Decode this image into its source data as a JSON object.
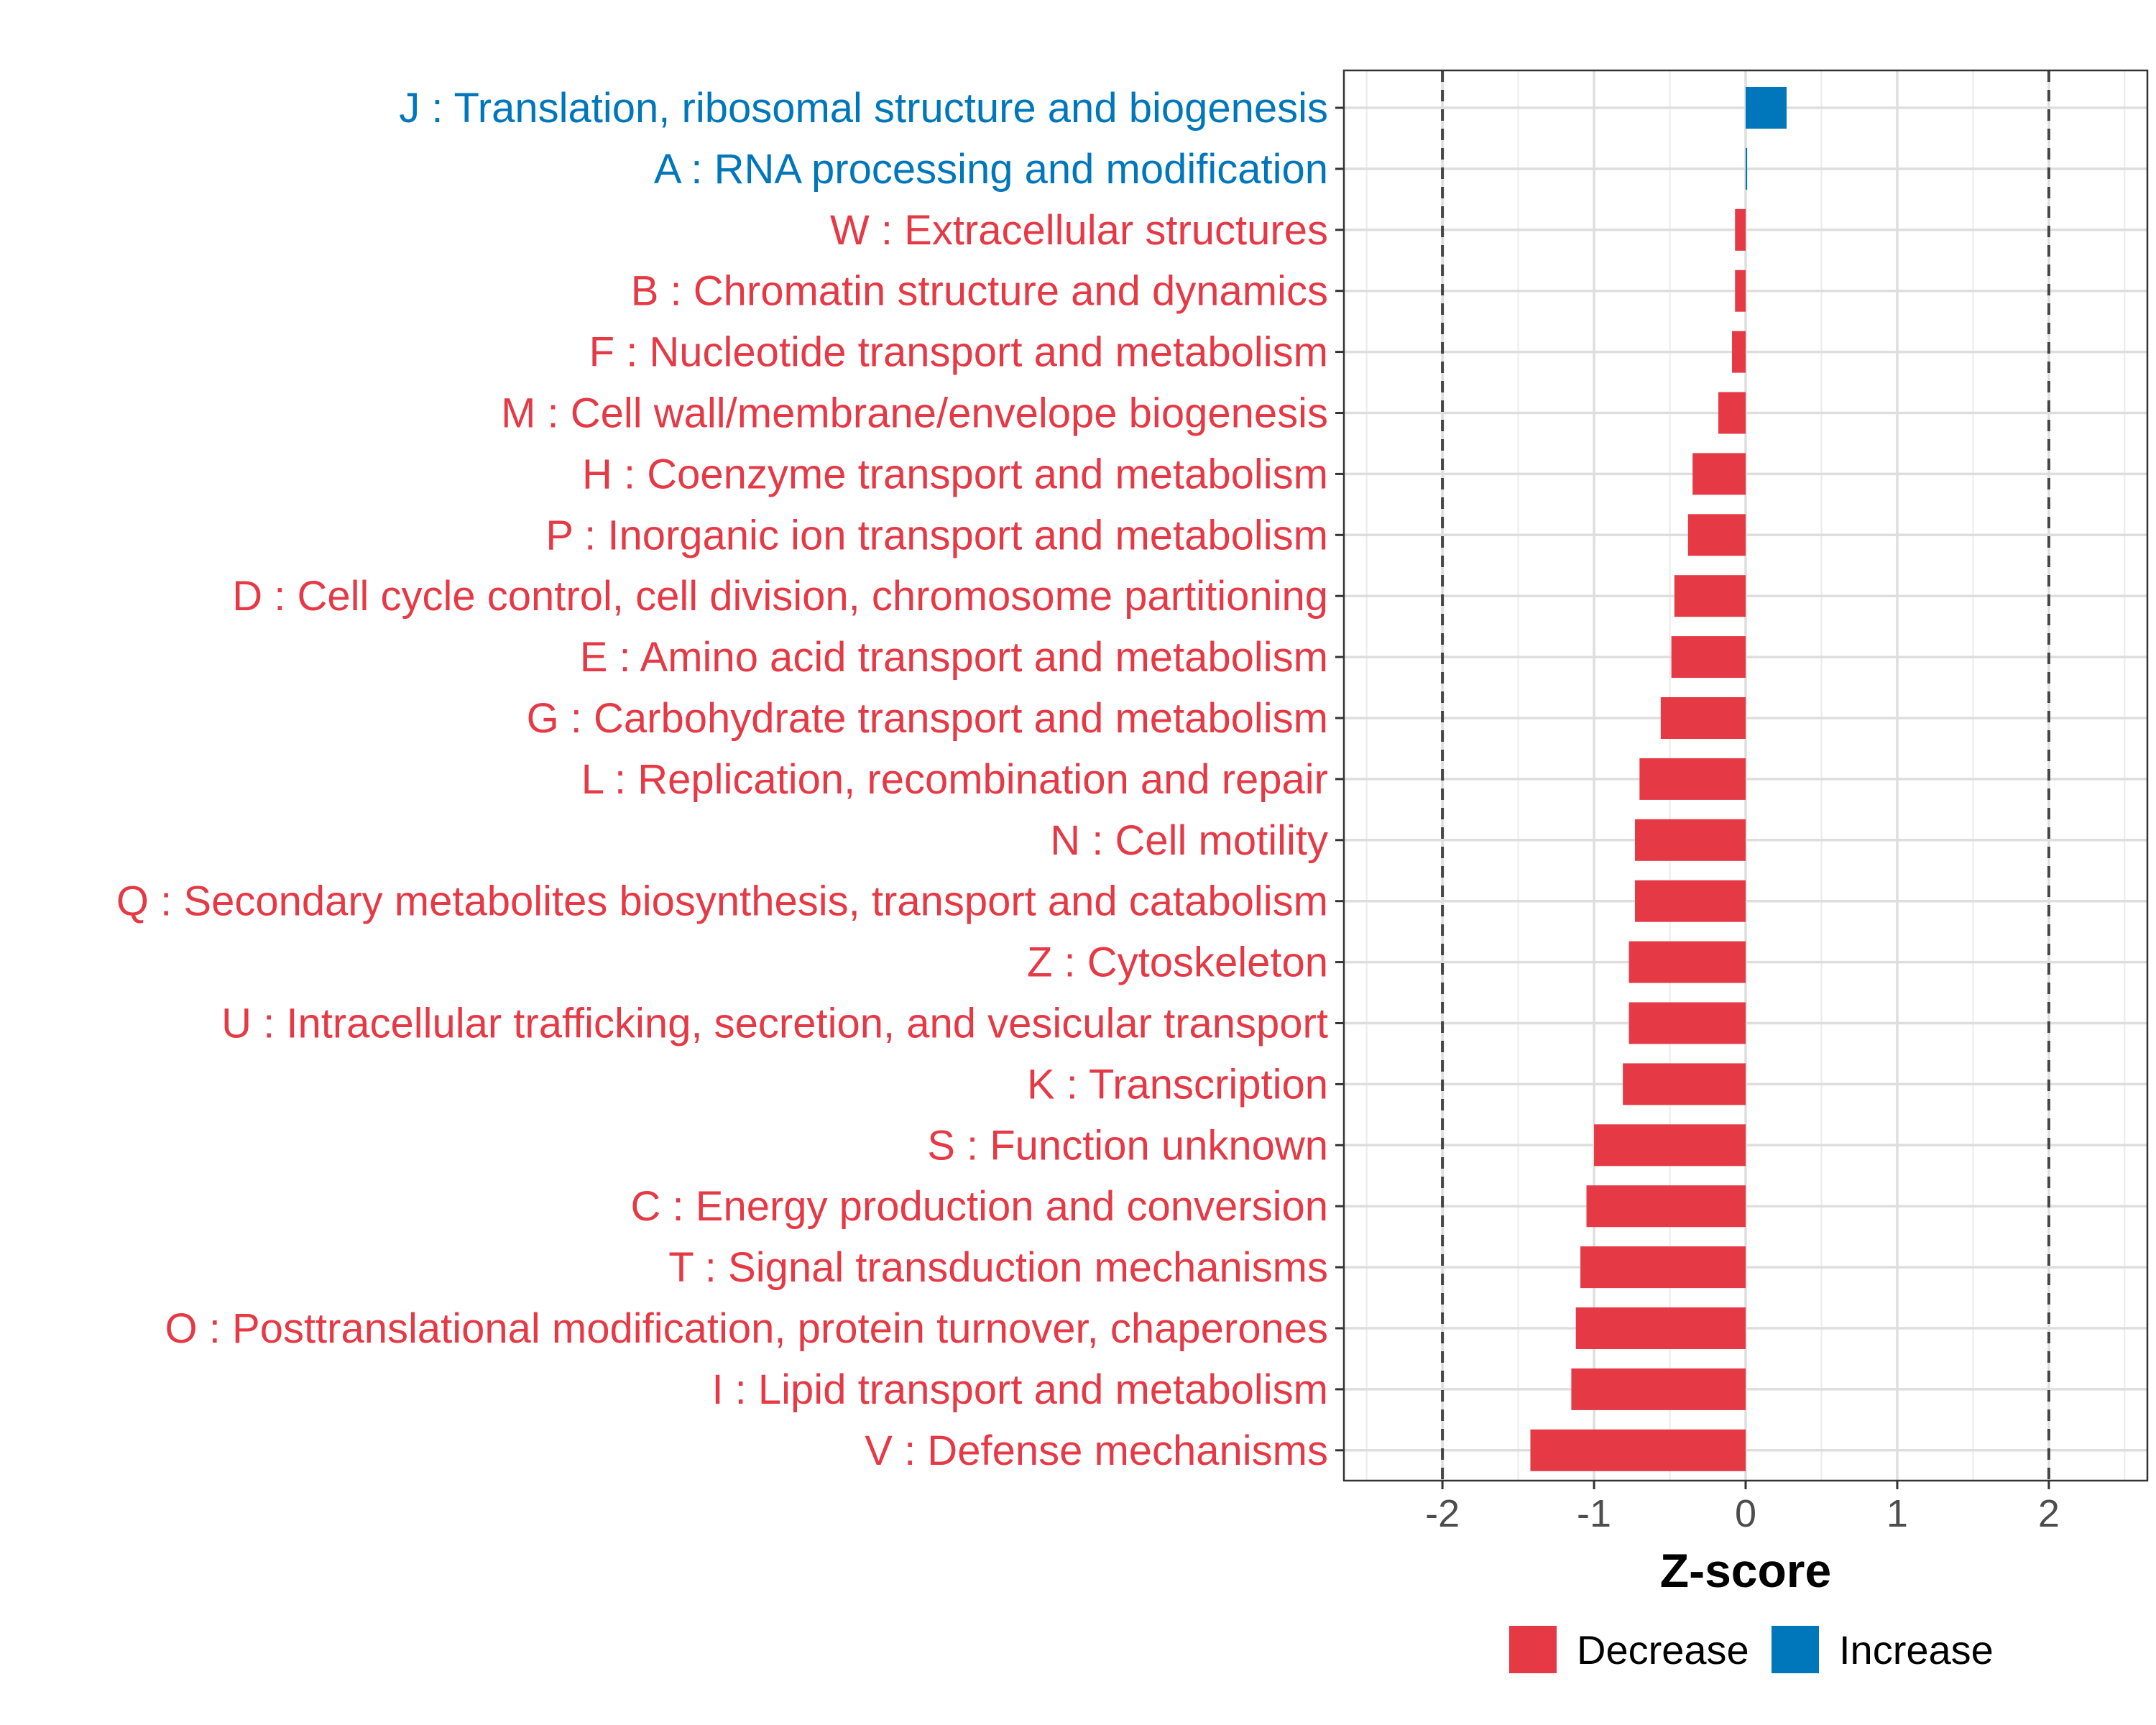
{
  "chart_data": {
    "type": "bar",
    "orientation": "horizontal",
    "title": "",
    "xlabel": "Z-score",
    "ylabel": "",
    "xlim": [
      -2.65,
      2.65
    ],
    "xticks": [
      -2,
      -1,
      0,
      1,
      2
    ],
    "xtick_labels": [
      "-2",
      "-1",
      "0",
      "1",
      "2"
    ],
    "reference_lines": [
      -2,
      2
    ],
    "grid": true,
    "legend_position": "bottom",
    "colors": {
      "Decrease": "#e63946",
      "Increase": "#0077bb"
    },
    "legend": [
      {
        "name": "Decrease",
        "color": "#e63946"
      },
      {
        "name": "Increase",
        "color": "#0077bb"
      }
    ],
    "categories": [
      "J : Translation, ribosomal structure and biogenesis",
      "A : RNA processing and modification",
      "W : Extracellular structures",
      "B : Chromatin structure and dynamics",
      "F : Nucleotide transport and metabolism",
      "M : Cell wall/membrane/envelope biogenesis",
      "H : Coenzyme transport and metabolism",
      "P : Inorganic ion transport and metabolism",
      "D : Cell cycle control, cell division, chromosome partitioning",
      "E : Amino acid transport and metabolism",
      "G : Carbohydrate transport and metabolism",
      "L : Replication, recombination and repair",
      "N : Cell motility",
      "Q : Secondary metabolites biosynthesis, transport and catabolism",
      "Z : Cytoskeleton",
      "U : Intracellular trafficking, secretion, and vesicular transport",
      "K : Transcription",
      "S : Function unknown",
      "C : Energy production and conversion",
      "T : Signal transduction mechanisms",
      "O : Posttranslational modification, protein turnover, chaperones",
      "I : Lipid transport and metabolism",
      "V : Defense mechanisms"
    ],
    "values": [
      0.27,
      0.01,
      -0.07,
      -0.07,
      -0.09,
      -0.18,
      -0.35,
      -0.38,
      -0.47,
      -0.49,
      -0.56,
      -0.7,
      -0.73,
      -0.73,
      -0.77,
      -0.77,
      -0.81,
      -1.0,
      -1.05,
      -1.09,
      -1.12,
      -1.15,
      -1.42
    ],
    "groups": [
      "Increase",
      "Increase",
      "Decrease",
      "Decrease",
      "Decrease",
      "Decrease",
      "Decrease",
      "Decrease",
      "Decrease",
      "Decrease",
      "Decrease",
      "Decrease",
      "Decrease",
      "Decrease",
      "Decrease",
      "Decrease",
      "Decrease",
      "Decrease",
      "Decrease",
      "Decrease",
      "Decrease",
      "Decrease",
      "Decrease"
    ]
  }
}
